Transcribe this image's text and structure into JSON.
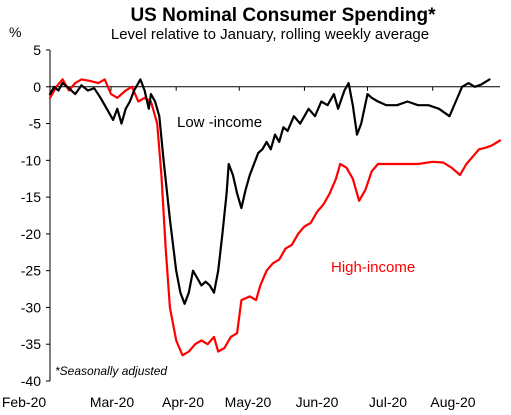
{
  "chart_data": {
    "type": "line",
    "title": "US Nominal Consumer Spending*",
    "subtitle": "Level relative to January, rolling weekly average",
    "y_unit": "%",
    "ylim": [
      -40,
      5
    ],
    "y_ticks": [
      5,
      0,
      -5,
      -10,
      -15,
      -20,
      -25,
      -30,
      -35,
      -40
    ],
    "x_tick_labels": [
      "Feb-20",
      "Mar-20",
      "Apr-20",
      "May-20",
      "Jun-20",
      "Jul-20",
      "Aug-20"
    ],
    "footnote": "*Seasonally adjusted",
    "grid": false,
    "series": [
      {
        "name": "Low-income",
        "label_text": "Low -income",
        "color": "#000000",
        "points": [
          [
            "2020-02-01",
            -1
          ],
          [
            "2020-02-03",
            0
          ],
          [
            "2020-02-05",
            -0.5
          ],
          [
            "2020-02-07",
            0.5
          ],
          [
            "2020-02-10",
            -0.2
          ],
          [
            "2020-02-13",
            -1
          ],
          [
            "2020-02-16",
            0.2
          ],
          [
            "2020-02-19",
            -0.5
          ],
          [
            "2020-02-22",
            -0.2
          ],
          [
            "2020-02-25",
            -1.5
          ],
          [
            "2020-02-28",
            -3
          ],
          [
            "2020-03-02",
            -4.5
          ],
          [
            "2020-03-04",
            -3
          ],
          [
            "2020-03-06",
            -5
          ],
          [
            "2020-03-08",
            -3
          ],
          [
            "2020-03-10",
            -2
          ],
          [
            "2020-03-12",
            -0.5
          ],
          [
            "2020-03-15",
            1
          ],
          [
            "2020-03-17",
            -0.5
          ],
          [
            "2020-03-19",
            -3
          ],
          [
            "2020-03-20",
            -1
          ],
          [
            "2020-03-22",
            -2
          ],
          [
            "2020-03-24",
            -4
          ],
          [
            "2020-03-26",
            -10
          ],
          [
            "2020-03-29",
            -18
          ],
          [
            "2020-04-01",
            -25
          ],
          [
            "2020-04-03",
            -28
          ],
          [
            "2020-04-05",
            -29.5
          ],
          [
            "2020-04-07",
            -28
          ],
          [
            "2020-04-09",
            -25
          ],
          [
            "2020-04-11",
            -26
          ],
          [
            "2020-04-13",
            -27
          ],
          [
            "2020-04-15",
            -26.5
          ],
          [
            "2020-04-17",
            -27
          ],
          [
            "2020-04-19",
            -28
          ],
          [
            "2020-04-21",
            -25
          ],
          [
            "2020-04-23",
            -20
          ],
          [
            "2020-04-25",
            -14.5
          ],
          [
            "2020-04-26",
            -10.5
          ],
          [
            "2020-04-28",
            -12
          ],
          [
            "2020-04-30",
            -14.5
          ],
          [
            "2020-05-02",
            -16.5
          ],
          [
            "2020-05-04",
            -14
          ],
          [
            "2020-05-06",
            -12
          ],
          [
            "2020-05-08",
            -10.5
          ],
          [
            "2020-05-10",
            -9
          ],
          [
            "2020-05-12",
            -8.5
          ],
          [
            "2020-05-14",
            -7.5
          ],
          [
            "2020-05-16",
            -8.5
          ],
          [
            "2020-05-18",
            -6.5
          ],
          [
            "2020-05-20",
            -7.5
          ],
          [
            "2020-05-22",
            -5.5
          ],
          [
            "2020-05-24",
            -6
          ],
          [
            "2020-05-27",
            -4
          ],
          [
            "2020-05-30",
            -5
          ],
          [
            "2020-06-03",
            -3
          ],
          [
            "2020-06-06",
            -4
          ],
          [
            "2020-06-09",
            -2
          ],
          [
            "2020-06-12",
            -2.5
          ],
          [
            "2020-06-15",
            -1
          ],
          [
            "2020-06-17",
            -3
          ],
          [
            "2020-06-20",
            -0.5
          ],
          [
            "2020-06-22",
            0.5
          ],
          [
            "2020-06-24",
            -2.5
          ],
          [
            "2020-06-26",
            -6.5
          ],
          [
            "2020-06-28",
            -5
          ],
          [
            "2020-07-01",
            -1
          ],
          [
            "2020-07-03",
            -1.5
          ],
          [
            "2020-07-06",
            -2
          ],
          [
            "2020-07-10",
            -2.5
          ],
          [
            "2020-07-15",
            -2.5
          ],
          [
            "2020-07-20",
            -2
          ],
          [
            "2020-07-25",
            -2.5
          ],
          [
            "2020-07-30",
            -2.5
          ],
          [
            "2020-08-04",
            -3
          ],
          [
            "2020-08-09",
            -4
          ],
          [
            "2020-08-12",
            -2
          ],
          [
            "2020-08-15",
            0
          ],
          [
            "2020-08-18",
            0.5
          ],
          [
            "2020-08-21",
            0
          ],
          [
            "2020-08-24",
            0.3
          ],
          [
            "2020-08-28",
            1
          ]
        ]
      },
      {
        "name": "High-income",
        "label_text": "High-income",
        "color": "#ff0000",
        "points": [
          [
            "2020-02-01",
            -1.5
          ],
          [
            "2020-02-04",
            0
          ],
          [
            "2020-02-07",
            1
          ],
          [
            "2020-02-10",
            -0.5
          ],
          [
            "2020-02-13",
            0.5
          ],
          [
            "2020-02-16",
            1
          ],
          [
            "2020-02-20",
            0.8
          ],
          [
            "2020-02-24",
            0.5
          ],
          [
            "2020-02-27",
            1
          ],
          [
            "2020-03-01",
            -1
          ],
          [
            "2020-03-04",
            -1.5
          ],
          [
            "2020-03-08",
            -0.5
          ],
          [
            "2020-03-11",
            0
          ],
          [
            "2020-03-14",
            -2
          ],
          [
            "2020-03-17",
            -1.5
          ],
          [
            "2020-03-20",
            -2
          ],
          [
            "2020-03-23",
            -5
          ],
          [
            "2020-03-25",
            -12
          ],
          [
            "2020-03-27",
            -22
          ],
          [
            "2020-03-29",
            -30
          ],
          [
            "2020-04-01",
            -34.5
          ],
          [
            "2020-04-04",
            -36.5
          ],
          [
            "2020-04-07",
            -36
          ],
          [
            "2020-04-10",
            -35
          ],
          [
            "2020-04-13",
            -34.5
          ],
          [
            "2020-04-16",
            -35
          ],
          [
            "2020-04-19",
            -34
          ],
          [
            "2020-04-21",
            -36
          ],
          [
            "2020-04-24",
            -35.5
          ],
          [
            "2020-04-27",
            -34
          ],
          [
            "2020-04-30",
            -33.5
          ],
          [
            "2020-05-02",
            -29
          ],
          [
            "2020-05-06",
            -28.5
          ],
          [
            "2020-05-09",
            -29
          ],
          [
            "2020-05-11",
            -27
          ],
          [
            "2020-05-14",
            -25
          ],
          [
            "2020-05-17",
            -24
          ],
          [
            "2020-05-20",
            -23.5
          ],
          [
            "2020-05-23",
            -22
          ],
          [
            "2020-05-26",
            -21.5
          ],
          [
            "2020-05-29",
            -20
          ],
          [
            "2020-06-01",
            -19
          ],
          [
            "2020-06-04",
            -18.5
          ],
          [
            "2020-06-07",
            -17
          ],
          [
            "2020-06-10",
            -16
          ],
          [
            "2020-06-13",
            -14.5
          ],
          [
            "2020-06-16",
            -12.5
          ],
          [
            "2020-06-18",
            -10.5
          ],
          [
            "2020-06-21",
            -11
          ],
          [
            "2020-06-24",
            -12.5
          ],
          [
            "2020-06-27",
            -15.5
          ],
          [
            "2020-06-30",
            -14
          ],
          [
            "2020-07-03",
            -11.5
          ],
          [
            "2020-07-06",
            -10.5
          ],
          [
            "2020-07-15",
            -10.5
          ],
          [
            "2020-07-25",
            -10.5
          ],
          [
            "2020-08-01",
            -10.2
          ],
          [
            "2020-08-06",
            -10.3
          ],
          [
            "2020-08-10",
            -11
          ],
          [
            "2020-08-14",
            -12
          ],
          [
            "2020-08-17",
            -10.5
          ],
          [
            "2020-08-20",
            -9.5
          ],
          [
            "2020-08-23",
            -8.5
          ],
          [
            "2020-08-26",
            -8.3
          ],
          [
            "2020-08-29",
            -8
          ],
          [
            "2020-09-02",
            -7.3
          ]
        ]
      }
    ]
  }
}
